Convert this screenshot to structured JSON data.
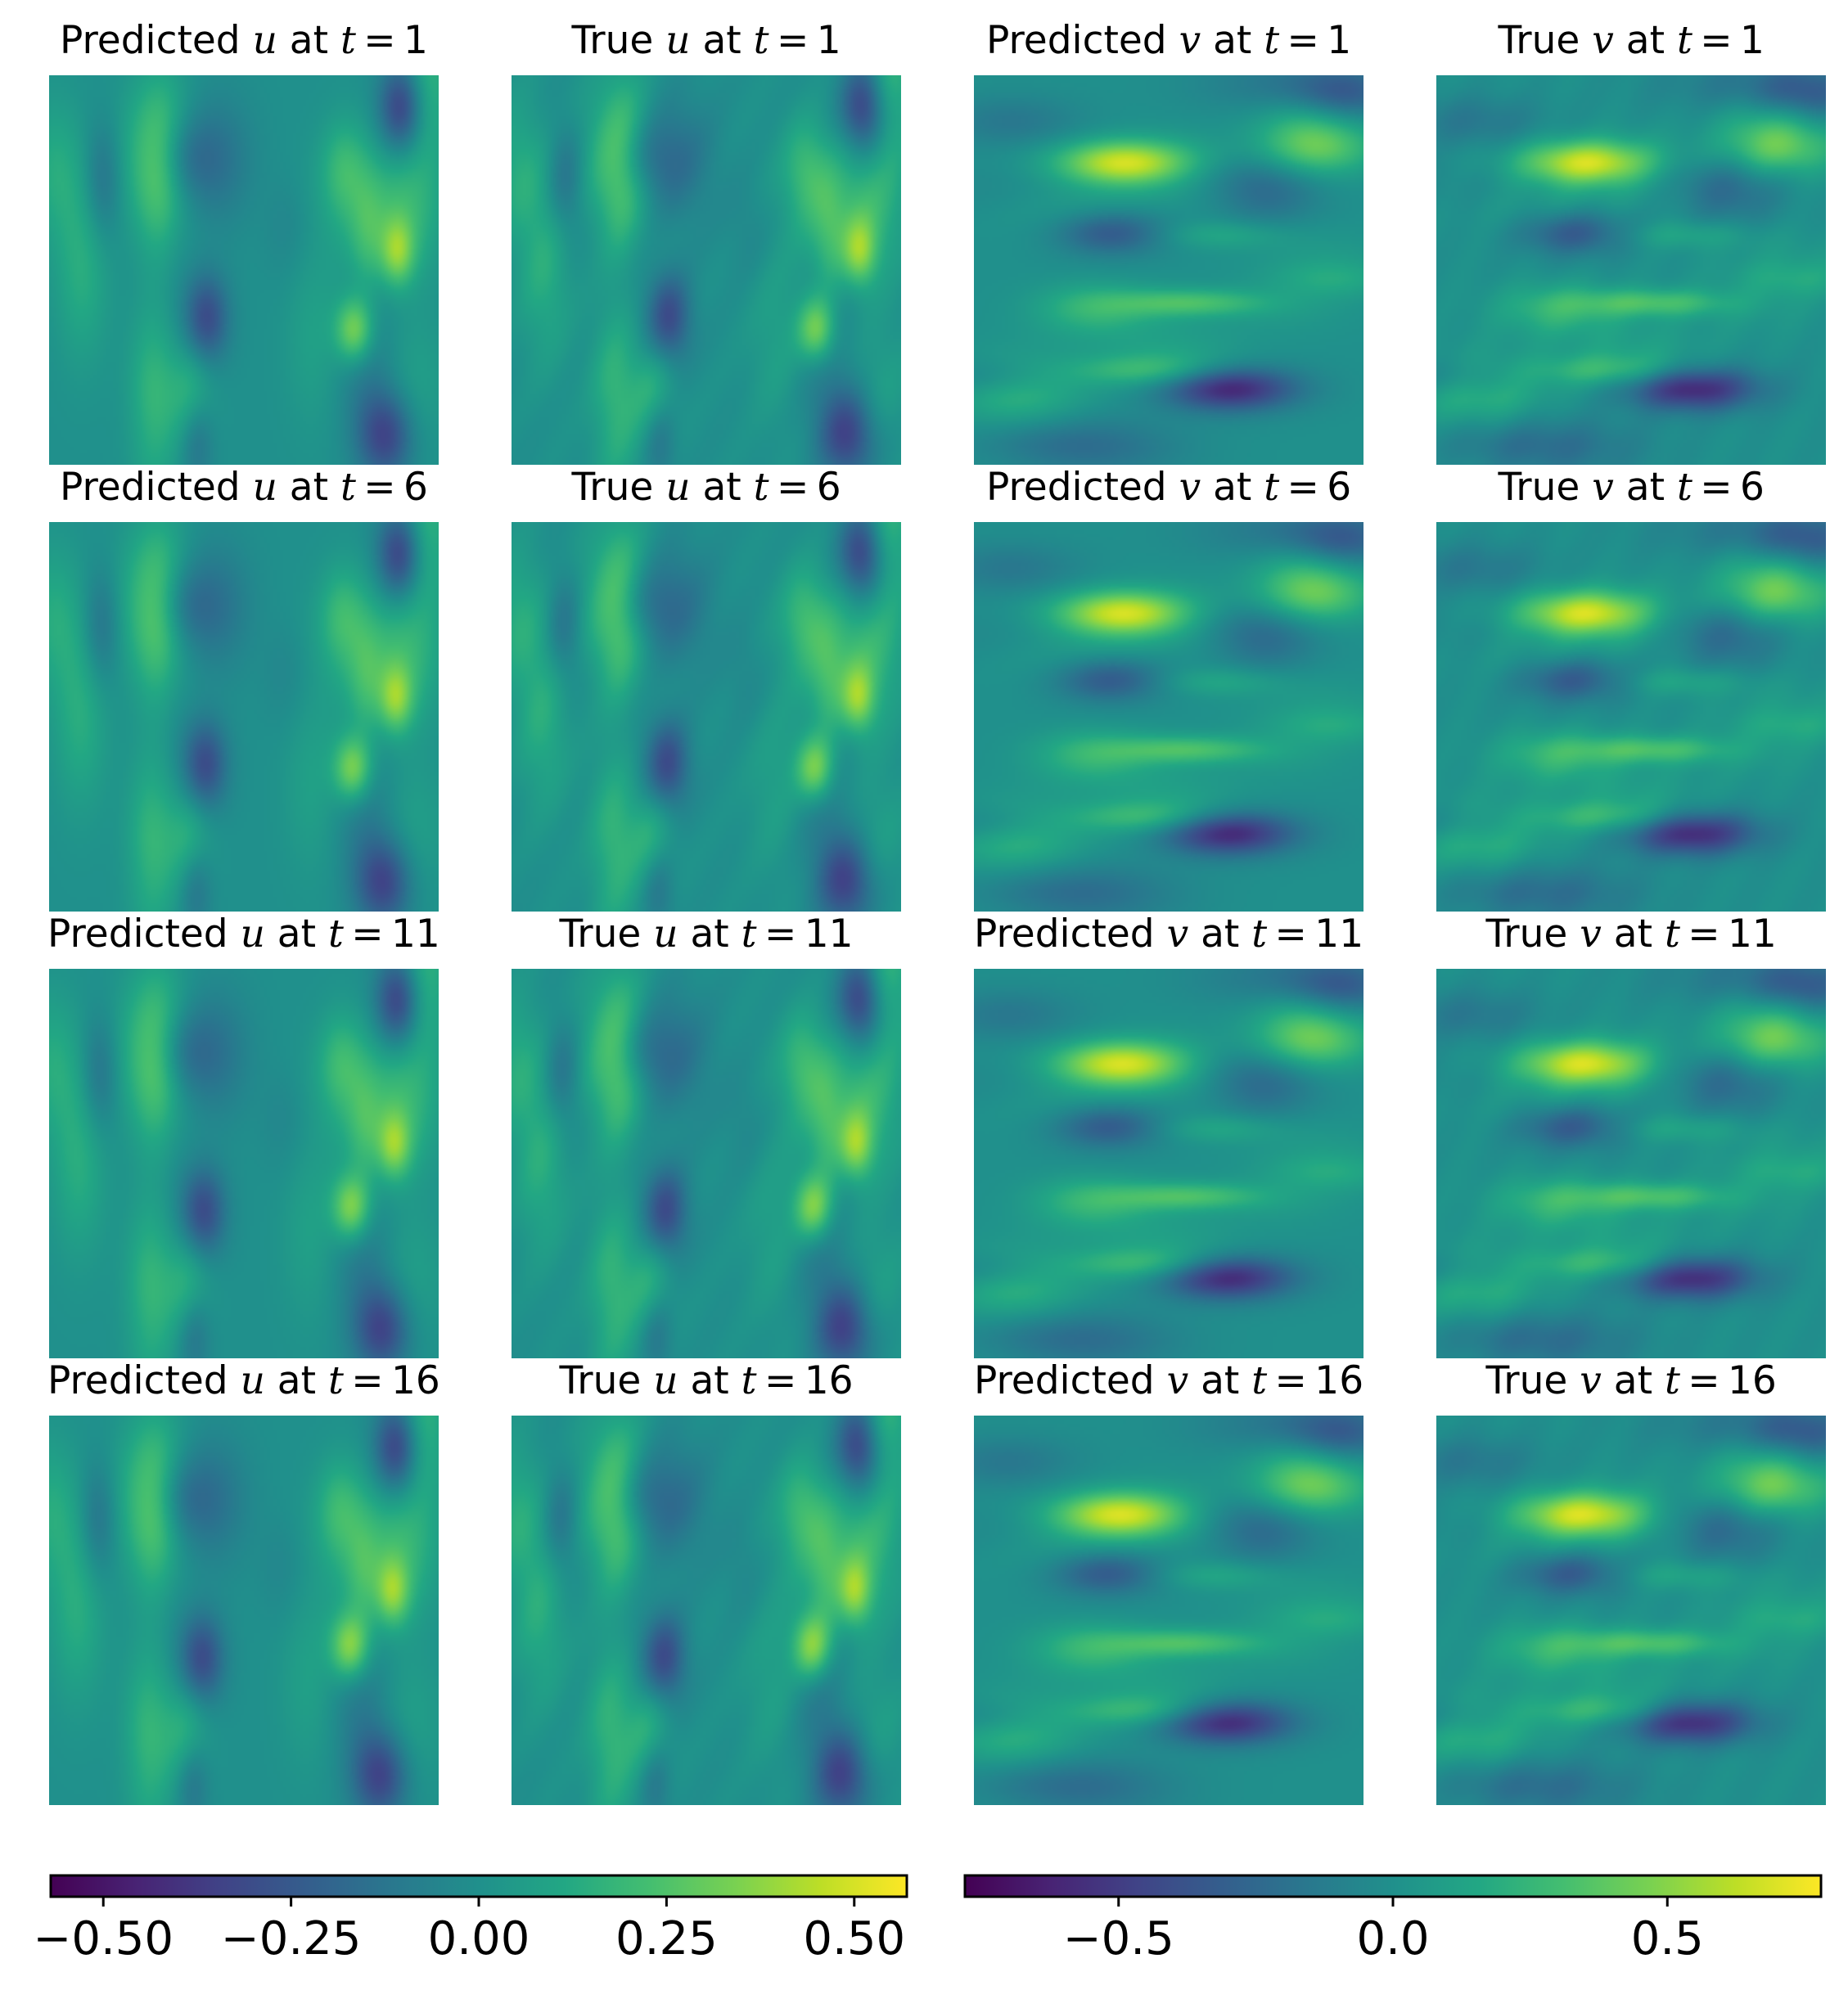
{
  "chart_data": {
    "type": "heatmap",
    "colormap": "viridis",
    "grid": false,
    "time_steps": [
      {
        "label": "1",
        "title_prefix_pred": "Predicted",
        "title_prefix_true": "True",
        "at": "at",
        "t": "t",
        "eq": "=",
        "value": "1"
      },
      {
        "label": "6",
        "title_prefix_pred": "Predicted",
        "title_prefix_true": "True",
        "at": "at",
        "t": "t",
        "eq": "=",
        "value": "6"
      },
      {
        "label": "11",
        "title_prefix_pred": "Predicted",
        "title_prefix_true": "True",
        "at": "at",
        "t": "t",
        "eq": "=",
        "value": "11"
      },
      {
        "label": "16",
        "title_prefix_pred": "Predicted",
        "title_prefix_true": "True",
        "at": "at",
        "t": "t",
        "eq": "=",
        "value": "16"
      }
    ],
    "columns": [
      {
        "kind": "Predicted",
        "var": "u"
      },
      {
        "kind": "True",
        "var": "u"
      },
      {
        "kind": "Predicted",
        "var": "v"
      },
      {
        "kind": "True",
        "var": "v"
      }
    ],
    "colorbars": [
      {
        "variable": "u",
        "range": [
          -0.57,
          0.57
        ],
        "ticks": [
          -0.5,
          -0.25,
          0.0,
          0.25,
          0.5
        ],
        "tick_labels": [
          "−0.50",
          "−0.25",
          "0.00",
          "0.25",
          "0.50"
        ]
      },
      {
        "variable": "v",
        "range": [
          -0.78,
          0.78
        ],
        "ticks": [
          -0.5,
          0.0,
          0.5
        ],
        "tick_labels": [
          "−0.5",
          "0.0",
          "0.5"
        ]
      }
    ],
    "titles": [
      [
        "Predicted u at t = 1",
        "True u at t = 1",
        "Predicted v at t = 1",
        "True v at t = 1"
      ],
      [
        "Predicted u at t = 6",
        "True u at t = 6",
        "Predicted v at t = 6",
        "True v at t = 6"
      ],
      [
        "Predicted u at t = 11",
        "True u at t = 11",
        "Predicted v at t = 11",
        "True v at t = 11"
      ],
      [
        "Predicted u at t = 16",
        "True u at t = 16",
        "Predicted v at t = 16",
        "True v at t = 16"
      ]
    ]
  }
}
